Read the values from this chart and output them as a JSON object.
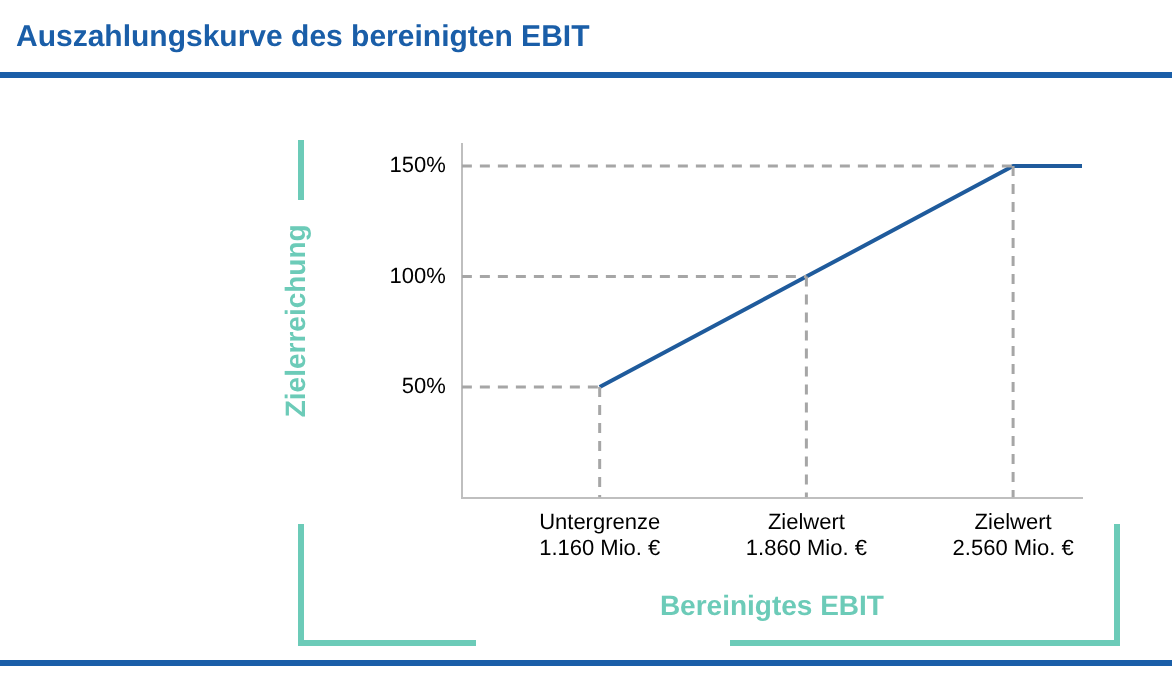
{
  "chart_data": {
    "type": "line",
    "title": "Auszahlungskurve des bereinigten EBIT",
    "xlabel": "Bereinigtes EBIT",
    "ylabel": "Zielerreichung",
    "categories": [
      null,
      null,
      "Untergrenze\n1.160 Mio. €",
      null,
      null,
      "Zielwert\n1.860 Mio. €",
      null,
      null,
      "Zielwert\n2.560 Mio. €",
      null
    ],
    "ylim": [
      0,
      160
    ],
    "yticks": [
      {
        "value": 50,
        "label": "50%"
      },
      {
        "value": 100,
        "label": "100%"
      },
      {
        "value": 150,
        "label": "150%"
      }
    ],
    "grid": false,
    "legend": false,
    "marker": "none",
    "series": [
      {
        "color": "#a6a6a6",
        "line_style": "dashed",
        "values": [
          50,
          50,
          50,
          null,
          null,
          null,
          null,
          null,
          null,
          null
        ]
      },
      {
        "color": "#a6a6a6",
        "line_style": "dashed",
        "values": [
          100,
          100,
          100,
          100,
          100,
          100,
          null,
          null,
          null,
          null
        ]
      },
      {
        "color": "#a6a6a6",
        "line_style": "dashed",
        "values": [
          150,
          150,
          150,
          150,
          150,
          150,
          150,
          150,
          150,
          null
        ]
      },
      {
        "color": "#a6a6a6",
        "line_style": "dashed",
        "x": [
          "Untergrenze\n1.160 Mio. €",
          "Untergrenze\n1.160 Mio. €"
        ],
        "values": [
          50,
          0
        ]
      },
      {
        "color": "#a6a6a6",
        "line_style": "dashed",
        "x": [
          "Zielwert\n1.860 Mio. €",
          "Zielwert\n1.860 Mio. €"
        ],
        "values": [
          100,
          0
        ]
      },
      {
        "color": "#a6a6a6",
        "line_style": "dashed",
        "x": [
          "Zielwert\n2.560 Mio. €",
          "Zielwert\n2.560 Mio. €"
        ],
        "values": [
          150,
          0
        ]
      },
      {
        "color": "#1f5b9c",
        "line_style": "solid",
        "values": [
          null,
          null,
          50,
          null,
          null,
          100,
          null,
          null,
          150,
          150
        ]
      }
    ]
  }
}
